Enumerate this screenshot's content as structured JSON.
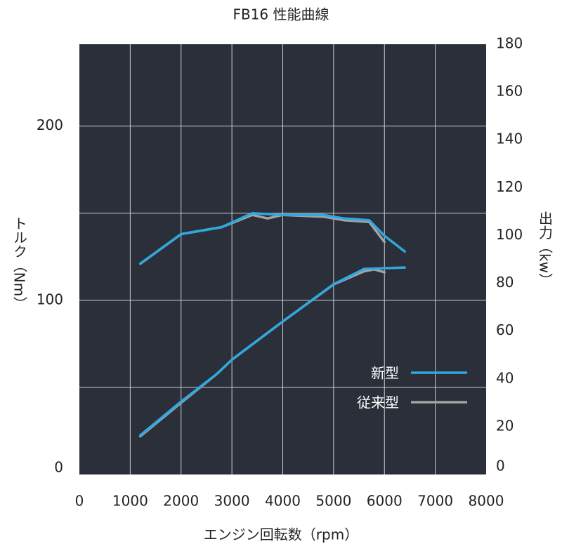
{
  "chart_data": {
    "type": "line",
    "title": "FB16 性能曲線",
    "x_label": "エンジン回転数（rpm）",
    "y_label": "トルク（Nm）",
    "y2_label": "出力（kw）",
    "xlim": [
      0,
      8000
    ],
    "xticks": [
      0,
      1000,
      2000,
      3000,
      4000,
      5000,
      6000,
      7000,
      8000
    ],
    "ylim": [
      0,
      247
    ],
    "yticks": [
      0,
      100,
      200
    ],
    "ygrid": [
      50,
      100,
      150,
      200
    ],
    "y2lim": [
      0,
      180
    ],
    "y2ticks": [
      0,
      20,
      40,
      60,
      80,
      100,
      120,
      140,
      160,
      180
    ],
    "grid": true,
    "legend_position": "lower right",
    "series": [
      {
        "name": "従来型",
        "color": "#a3a3a3",
        "axis": "y",
        "x": [
          1200,
          2000,
          2800,
          3400,
          3700,
          4000,
          4800,
          5200,
          5700,
          6000
        ],
        "values": [
          121,
          138,
          142,
          149,
          147,
          149,
          148,
          146,
          145,
          133.5
        ]
      },
      {
        "name": "従来型",
        "color": "#a3a3a3",
        "axis": "y2",
        "x": [
          1200,
          2000,
          2700,
          3000,
          4000,
          5000,
          5600,
          5800,
          6000
        ],
        "values": [
          16,
          30,
          42,
          48,
          64,
          79.5,
          85,
          85.8,
          84.6
        ]
      },
      {
        "name": "新型",
        "color": "#2ea8df",
        "axis": "y",
        "x": [
          1200,
          2000,
          2800,
          3400,
          4000,
          4800,
          5200,
          5700,
          6000,
          6400
        ],
        "values": [
          121,
          138,
          142,
          150,
          149,
          149,
          147,
          146,
          137,
          128
        ]
      },
      {
        "name": "新型",
        "color": "#2ea8df",
        "axis": "y2",
        "x": [
          1200,
          2000,
          2700,
          3000,
          4000,
          5000,
          5600,
          6400
        ],
        "values": [
          16.4,
          30.5,
          42,
          48,
          64,
          79.6,
          86,
          86.6
        ]
      }
    ]
  }
}
